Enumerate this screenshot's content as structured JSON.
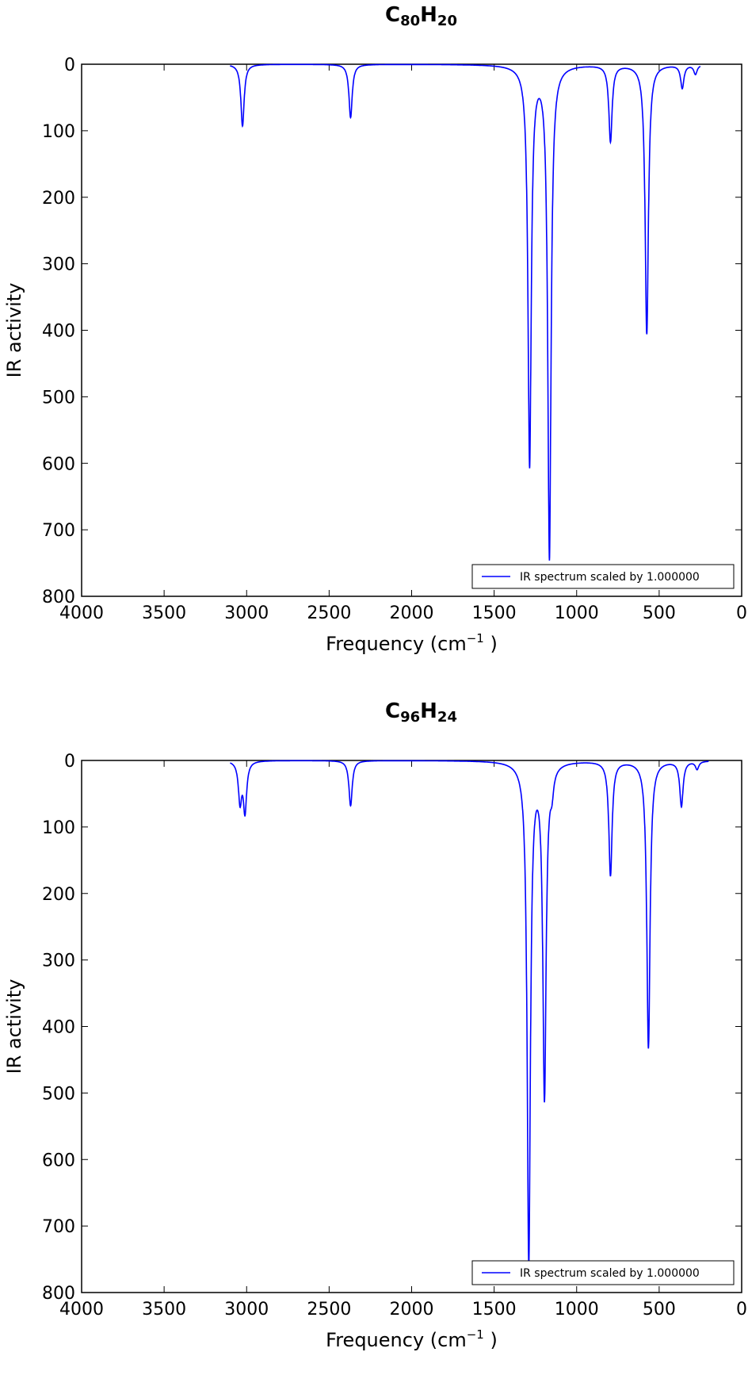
{
  "chart_data": [
    {
      "type": "line",
      "title_main": {
        "c": "C",
        "c_sub": "80",
        "h": "H",
        "h_sub": "20"
      },
      "xlabel": "Frequency (cm",
      "xlabel_sup": "−1",
      "xlabel_close": " )",
      "ylabel": "IR activity",
      "xlim": [
        4000,
        0
      ],
      "ylim": [
        0,
        800
      ],
      "y_inverted": true,
      "xticks": [
        4000,
        3500,
        3000,
        2500,
        2000,
        1500,
        1000,
        500,
        0
      ],
      "yticks": [
        0,
        100,
        200,
        300,
        400,
        500,
        600,
        700,
        800
      ],
      "xtick_labels": [
        "4000",
        "3500",
        "3000",
        "2500",
        "2000",
        "1500",
        "1000",
        "500",
        "0"
      ],
      "ytick_labels": [
        "0",
        "100",
        "200",
        "300",
        "400",
        "500",
        "600",
        "700",
        "800"
      ],
      "grid": false,
      "legend_position": "bottom-right",
      "series": [
        {
          "name": "IR spectrum scaled by 1.000000",
          "color": "#0000ff",
          "x_range": [
            3100,
            250
          ],
          "peaks": [
            {
              "x": 3025,
              "y": 93
            },
            {
              "x": 2370,
              "y": 80
            },
            {
              "x": 1285,
              "y": 600
            },
            {
              "x": 1165,
              "y": 740
            },
            {
              "x": 795,
              "y": 115
            },
            {
              "x": 575,
              "y": 405
            },
            {
              "x": 360,
              "y": 35
            },
            {
              "x": 280,
              "y": 14
            }
          ]
        }
      ]
    },
    {
      "type": "line",
      "title_main": {
        "c": "C",
        "c_sub": "96",
        "h": "H",
        "h_sub": "24"
      },
      "xlabel": "Frequency (cm",
      "xlabel_sup": "−1",
      "xlabel_close": " )",
      "ylabel": "IR activity",
      "xlim": [
        4000,
        0
      ],
      "ylim": [
        0,
        800
      ],
      "y_inverted": true,
      "xticks": [
        4000,
        3500,
        3000,
        2500,
        2000,
        1500,
        1000,
        500,
        0
      ],
      "yticks": [
        0,
        100,
        200,
        300,
        400,
        500,
        600,
        700,
        800
      ],
      "xtick_labels": [
        "4000",
        "3500",
        "3000",
        "2500",
        "2000",
        "1500",
        "1000",
        "500",
        "0"
      ],
      "ytick_labels": [
        "0",
        "100",
        "200",
        "300",
        "400",
        "500",
        "600",
        "700",
        "800"
      ],
      "grid": false,
      "legend_position": "bottom-right",
      "series": [
        {
          "name": "IR spectrum scaled by 1.000000",
          "color": "#0000ff",
          "x_range": [
            3100,
            200
          ],
          "peaks": [
            {
              "x": 3040,
              "y": 60
            },
            {
              "x": 3010,
              "y": 75
            },
            {
              "x": 2370,
              "y": 68
            },
            {
              "x": 1290,
              "y": 748
            },
            {
              "x": 1195,
              "y": 500
            },
            {
              "x": 1150,
              "y": 30
            },
            {
              "x": 795,
              "y": 172
            },
            {
              "x": 565,
              "y": 432
            },
            {
              "x": 365,
              "y": 68
            },
            {
              "x": 270,
              "y": 12
            }
          ]
        }
      ]
    }
  ]
}
